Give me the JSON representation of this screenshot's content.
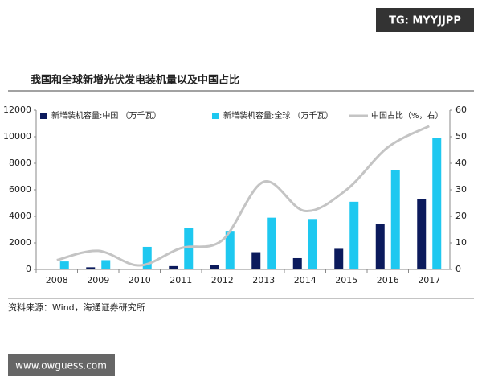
{
  "chart_data": {
    "type": "bar-line",
    "title": "我国和全球新增光伏发电装机量以及中国占比",
    "source": "资料来源：Wind，海通证券研究所",
    "watermarks": [
      "TG: MYYJJPP",
      "www.owguess.com"
    ],
    "categories": [
      "2008",
      "2009",
      "2010",
      "2011",
      "2012",
      "2013",
      "2014",
      "2015",
      "2016",
      "2017"
    ],
    "series": [
      {
        "name": "新增装机容量:中国 （万千瓦）",
        "color": "#0b1a5c",
        "kind": "bar",
        "values": [
          40,
          160,
          50,
          250,
          330,
          1300,
          850,
          1550,
          3450,
          5300
        ]
      },
      {
        "name": "新增装机容量:全球 （万千瓦）",
        "color": "#1ec8f0",
        "kind": "bar",
        "values": [
          600,
          700,
          1700,
          3100,
          2900,
          3900,
          3800,
          5100,
          7500,
          9900
        ]
      },
      {
        "name": "中国占比（%，右）",
        "color": "#c4c4c4",
        "kind": "line",
        "axis": "y2",
        "values": [
          3.5,
          7,
          1.5,
          8,
          11,
          33,
          22,
          30,
          46,
          54
        ]
      }
    ],
    "ylim": [
      0,
      12000
    ],
    "yticks": [
      0,
      2000,
      4000,
      6000,
      8000,
      10000,
      12000
    ],
    "y2lim": [
      0,
      60
    ],
    "y2ticks": [
      0,
      10,
      20,
      30,
      40,
      50,
      60
    ],
    "grid": false,
    "legend": "top"
  }
}
